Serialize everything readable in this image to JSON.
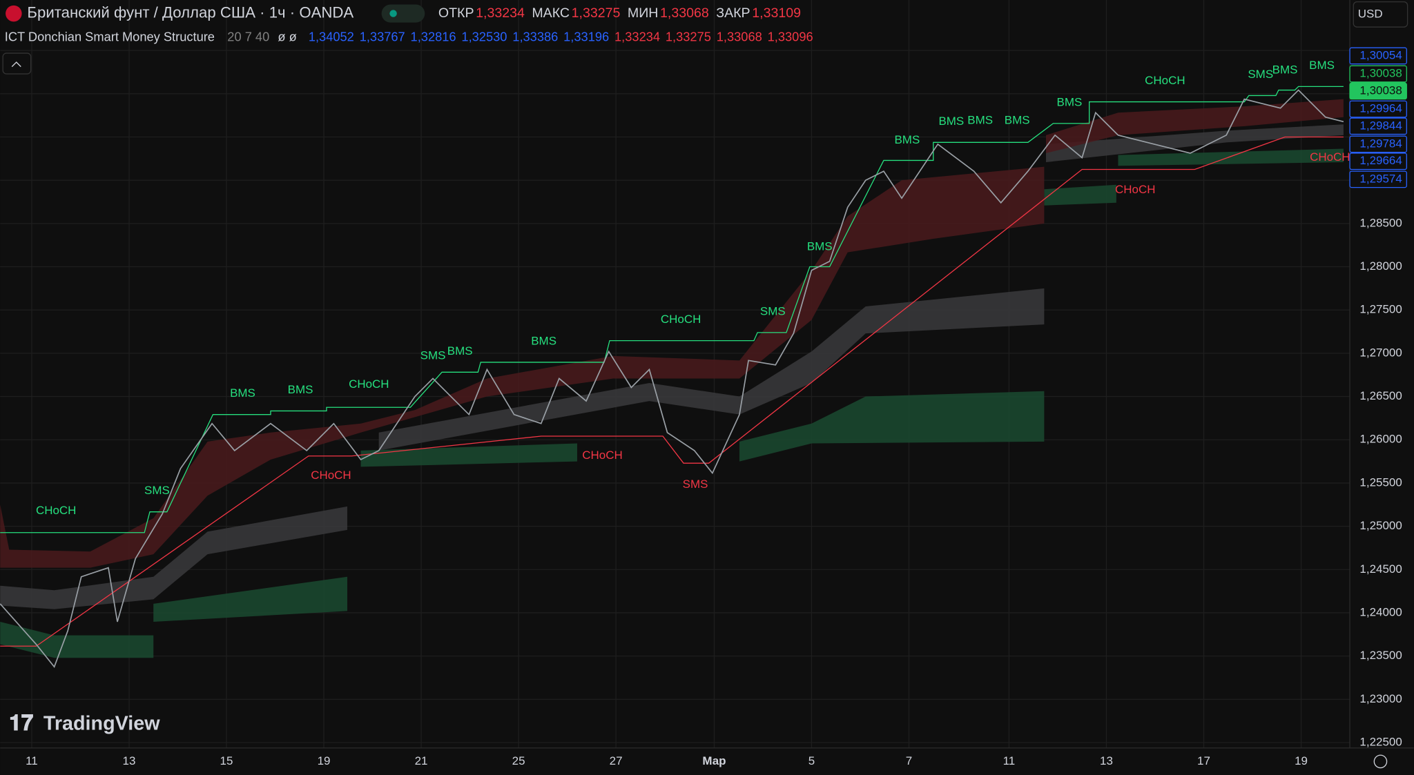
{
  "header": {
    "symbol": "Британский фунт / Доллар США · 1ч · OANDA",
    "ohlc": [
      {
        "label": "ОТКР",
        "value": "1,33234"
      },
      {
        "label": "МАКС",
        "value": "1,33275"
      },
      {
        "label": "МИН",
        "value": "1,33068"
      },
      {
        "label": "ЗАКР",
        "value": "1,33109"
      }
    ],
    "currency": "USD"
  },
  "indicator": {
    "name": "ICT Donchian Smart Money Structure",
    "params": "20 7 40",
    "flags": "ø ø",
    "values": [
      {
        "text": "1,34052",
        "color": "#2962ff"
      },
      {
        "text": "1,33767",
        "color": "#2962ff"
      },
      {
        "text": "1,32816",
        "color": "#2962ff"
      },
      {
        "text": "1,32530",
        "color": "#2962ff"
      },
      {
        "text": "1,33386",
        "color": "#2962ff"
      },
      {
        "text": "1,33196",
        "color": "#2962ff"
      },
      {
        "text": "1,33234",
        "color": "#f23645"
      },
      {
        "text": "1,33275",
        "color": "#f23645"
      },
      {
        "text": "1,33068",
        "color": "#f23645"
      },
      {
        "text": "1,33096",
        "color": "#f23645"
      }
    ]
  },
  "price_axis": {
    "labels": [
      "1,28500",
      "1,28000",
      "1,27500",
      "1,27000",
      "1,26500",
      "1,26000",
      "1,25500",
      "1,25000",
      "1,24500",
      "1,24000",
      "1,23500",
      "1,23000",
      "1,22500"
    ]
  },
  "price_tags": [
    {
      "text": "1,30054",
      "color": "#2962ff",
      "filled": false
    },
    {
      "text": "1,30038",
      "color": "#22c55e",
      "filled": false
    },
    {
      "text": "1,30038",
      "color": "#22c55e",
      "filled": true
    },
    {
      "text": "1,29964",
      "color": "#2962ff",
      "filled": false
    },
    {
      "text": "1,29844",
      "color": "#2962ff",
      "filled": false
    },
    {
      "text": "1,29784",
      "color": "#2962ff",
      "filled": false
    },
    {
      "text": "1,29664",
      "color": "#2962ff",
      "filled": false
    },
    {
      "text": "1,29574",
      "color": "#2962ff",
      "filled": false
    }
  ],
  "time_axis": {
    "labels": [
      "11",
      "13",
      "15",
      "19",
      "21",
      "25",
      "27",
      "Мар",
      "5",
      "7",
      "11",
      "13",
      "17",
      "19"
    ]
  },
  "annotations": [
    {
      "text": "CHoCH",
      "color": "#26e07f"
    },
    {
      "text": "SMS",
      "color": "#26e07f"
    },
    {
      "text": "BMS",
      "color": "#26e07f"
    },
    {
      "text": "BMS",
      "color": "#26e07f"
    },
    {
      "text": "CHoCH",
      "color": "#26e07f"
    },
    {
      "text": "CHoCH",
      "color": "#f23645"
    },
    {
      "text": "SMS",
      "color": "#26e07f"
    },
    {
      "text": "BMS",
      "color": "#26e07f"
    },
    {
      "text": "BMS",
      "color": "#26e07f"
    },
    {
      "text": "CHoCH",
      "color": "#f23645"
    },
    {
      "text": "CHoCH",
      "color": "#26e07f"
    },
    {
      "text": "SMS",
      "color": "#f23645"
    },
    {
      "text": "SMS",
      "color": "#26e07f"
    },
    {
      "text": "BMS",
      "color": "#26e07f"
    },
    {
      "text": "BMS",
      "color": "#26e07f"
    },
    {
      "text": "BMS",
      "color": "#26e07f"
    },
    {
      "text": "BMS",
      "color": "#26e07f"
    },
    {
      "text": "BMS",
      "color": "#26e07f"
    },
    {
      "text": "BMS",
      "color": "#26e07f"
    },
    {
      "text": "CHoCH",
      "color": "#26e07f"
    },
    {
      "text": "CHoCH",
      "color": "#f23645"
    },
    {
      "text": "SMS",
      "color": "#26e07f"
    },
    {
      "text": "BMS",
      "color": "#26e07f"
    },
    {
      "text": "BMS",
      "color": "#26e07f"
    },
    {
      "text": "CHoCH",
      "color": "#f23645"
    }
  ],
  "watermark": "TradingView"
}
